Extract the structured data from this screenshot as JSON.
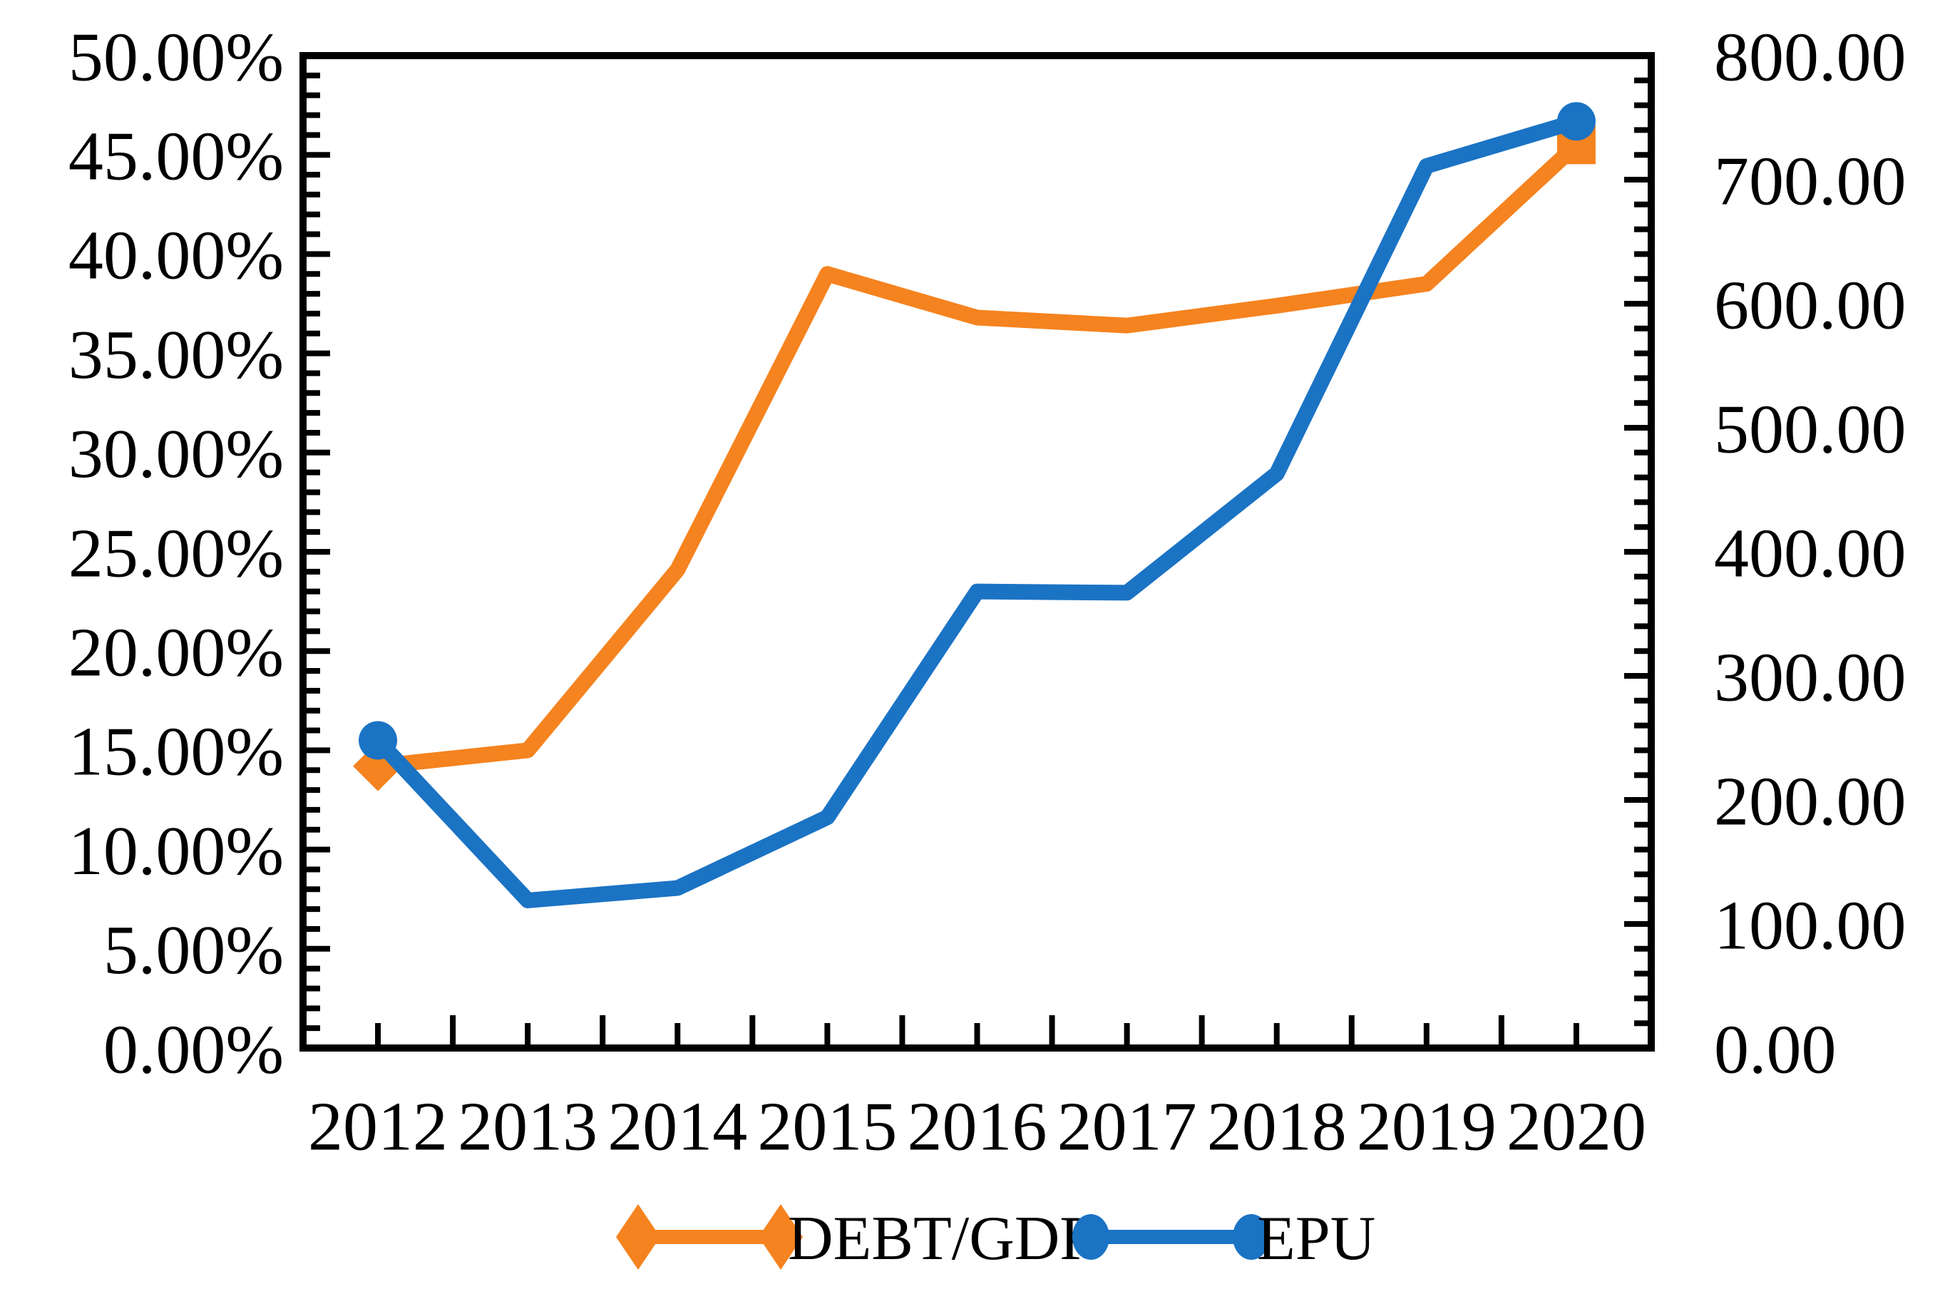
{
  "page": {
    "background": "#ffffff"
  },
  "chart_data": {
    "type": "line",
    "title": "",
    "categories": [
      "2012",
      "2013",
      "2014",
      "2015",
      "2016",
      "2017",
      "2018",
      "2019",
      "2020"
    ],
    "series": [
      {
        "name": "DEBT/GDP",
        "axis": "left",
        "color": "#F5831F",
        "values": [
          14.2,
          15.0,
          24.1,
          39.0,
          36.8,
          36.4,
          37.4,
          38.5,
          45.5
        ],
        "unit": "percent",
        "endpoint_markers": [
          "diamond",
          "square"
        ]
      },
      {
        "name": "EPU",
        "axis": "right",
        "color": "#1B73C4",
        "values": [
          248,
          119,
          129,
          186,
          368,
          367,
          463,
          711,
          747
        ],
        "unit": "index",
        "endpoint_markers": [
          "circle",
          "circle"
        ]
      }
    ],
    "left_axis": {
      "min": 0,
      "max": 50,
      "major_step": 5,
      "minor_step": 1,
      "labels": [
        "0.00%",
        "5.00%",
        "10.00%",
        "15.00%",
        "20.00%",
        "25.00%",
        "30.00%",
        "35.00%",
        "40.00%",
        "45.00%",
        "50.00%"
      ]
    },
    "right_axis": {
      "min": 0,
      "max": 800,
      "major_step": 100,
      "minor_step": 20,
      "labels": [
        "0.00",
        "100.00",
        "200.00",
        "300.00",
        "400.00",
        "500.00",
        "600.00",
        "700.00",
        "800.00"
      ]
    },
    "x_axis": {
      "labels": [
        "2012",
        "2013",
        "2014",
        "2015",
        "2016",
        "2017",
        "2018",
        "2019",
        "2020"
      ]
    },
    "grid": false,
    "legend": {
      "position": "bottom",
      "items": [
        "DEBT/GDP",
        "EPU"
      ]
    },
    "axis_color": "#000000"
  }
}
